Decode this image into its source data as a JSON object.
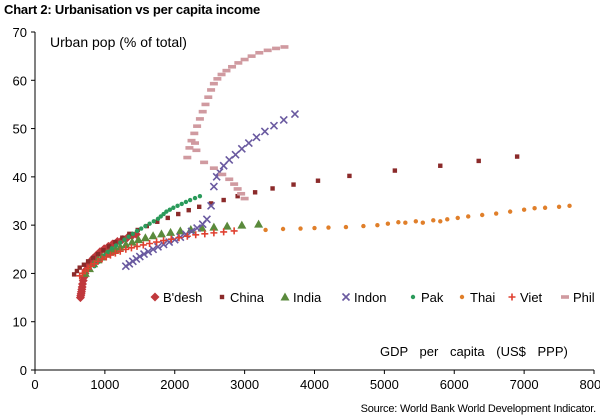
{
  "header": {
    "title": "Chart 2: Urbanisation vs per capita income"
  },
  "footer": {
    "source": "Source: World Bank World Development Indicator."
  },
  "chart_data": {
    "type": "scatter",
    "title": "Chart 2: Urbanisation vs per capita income",
    "ylabel": "Urban pop (% of total)",
    "xlabel": "GDP per capita (US$ PPP)",
    "xlim": [
      0,
      8000
    ],
    "ylim": [
      0,
      70
    ],
    "x_ticks": [
      0,
      1000,
      2000,
      3000,
      4000,
      5000,
      6000,
      7000,
      8000
    ],
    "y_ticks": [
      0,
      10,
      20,
      30,
      40,
      50,
      60,
      70
    ],
    "grid": false,
    "legend_position": "bottom",
    "series": [
      {
        "name": "B'desh",
        "color": "#c0383c",
        "marker": "diamond",
        "points": [
          [
            650,
            15
          ],
          [
            655,
            15.4
          ],
          [
            660,
            15.8
          ],
          [
            665,
            16.2
          ],
          [
            670,
            16.7
          ],
          [
            675,
            17.2
          ],
          [
            680,
            17.8
          ],
          [
            690,
            18.5
          ],
          [
            700,
            19.2
          ],
          [
            715,
            20
          ],
          [
            735,
            20.8
          ],
          [
            760,
            21.6
          ],
          [
            790,
            22.4
          ],
          [
            830,
            23.1
          ],
          [
            880,
            23.8
          ],
          [
            930,
            24.5
          ],
          [
            990,
            25.1
          ],
          [
            1050,
            25.6
          ],
          [
            1110,
            26.1
          ],
          [
            1180,
            26.6
          ],
          [
            1250,
            27
          ],
          [
            1320,
            27.4
          ],
          [
            1390,
            27.8
          ],
          [
            1450,
            28.1
          ]
        ]
      },
      {
        "name": "China",
        "color": "#8b2a2a",
        "marker": "square",
        "points": [
          [
            560,
            19.8
          ],
          [
            600,
            20.5
          ],
          [
            640,
            21.2
          ],
          [
            700,
            21.8
          ],
          [
            760,
            22.5
          ],
          [
            830,
            23.2
          ],
          [
            900,
            24
          ],
          [
            980,
            24.8
          ],
          [
            1060,
            25.6
          ],
          [
            1150,
            26.5
          ],
          [
            1250,
            27.4
          ],
          [
            1350,
            28.2
          ],
          [
            1470,
            29
          ],
          [
            1600,
            29.8
          ],
          [
            1750,
            30.7
          ],
          [
            1900,
            31.5
          ],
          [
            2050,
            32.3
          ],
          [
            2200,
            33.1
          ],
          [
            2350,
            33.8
          ],
          [
            2520,
            34.5
          ],
          [
            2700,
            35.2
          ],
          [
            2900,
            36
          ],
          [
            3150,
            36.8
          ],
          [
            3400,
            37.6
          ],
          [
            3700,
            38.4
          ],
          [
            4050,
            39.2
          ],
          [
            4500,
            40.2
          ],
          [
            5150,
            41.3
          ],
          [
            5800,
            42.3
          ],
          [
            6350,
            43.3
          ],
          [
            6900,
            44.2
          ]
        ]
      },
      {
        "name": "India",
        "color": "#5a8a3c",
        "marker": "triangle",
        "points": [
          [
            720,
            20
          ],
          [
            780,
            21
          ],
          [
            840,
            22
          ],
          [
            900,
            22.8
          ],
          [
            960,
            23.4
          ],
          [
            1020,
            24
          ],
          [
            1080,
            24.5
          ],
          [
            1150,
            25
          ],
          [
            1220,
            25.5
          ],
          [
            1300,
            26
          ],
          [
            1390,
            26.5
          ],
          [
            1480,
            27
          ],
          [
            1580,
            27.4
          ],
          [
            1690,
            27.8
          ],
          [
            1810,
            28.2
          ],
          [
            1940,
            28.5
          ],
          [
            2080,
            28.8
          ],
          [
            2230,
            29.1
          ],
          [
            2390,
            29.4
          ],
          [
            2560,
            29.6
          ],
          [
            2750,
            29.8
          ],
          [
            2960,
            30
          ],
          [
            3200,
            30.2
          ]
        ]
      },
      {
        "name": "Indon",
        "color": "#6a5aa0",
        "marker": "cross",
        "points": [
          [
            1300,
            21.5
          ],
          [
            1350,
            22
          ],
          [
            1400,
            22.5
          ],
          [
            1450,
            23
          ],
          [
            1500,
            23.5
          ],
          [
            1560,
            24
          ],
          [
            1620,
            24.5
          ],
          [
            1690,
            25
          ],
          [
            1760,
            25.5
          ],
          [
            1840,
            26
          ],
          [
            1920,
            26.5
          ],
          [
            2000,
            27
          ],
          [
            2080,
            27.5
          ],
          [
            2160,
            28.1
          ],
          [
            2240,
            28.7
          ],
          [
            2320,
            29.4
          ],
          [
            2400,
            30.2
          ],
          [
            2460,
            31.2
          ],
          [
            2520,
            34
          ],
          [
            2560,
            38
          ],
          [
            2600,
            40
          ],
          [
            2640,
            41
          ],
          [
            2700,
            42.3
          ],
          [
            2780,
            43.5
          ],
          [
            2870,
            44.6
          ],
          [
            2960,
            45.8
          ],
          [
            3060,
            47
          ],
          [
            3170,
            48.2
          ],
          [
            3290,
            49.4
          ],
          [
            3420,
            50.6
          ],
          [
            3560,
            51.8
          ],
          [
            3720,
            53
          ]
        ]
      },
      {
        "name": "Pak",
        "color": "#2a9a5a",
        "marker": "dot",
        "points": [
          [
            850,
            21.5
          ],
          [
            900,
            22.3
          ],
          [
            950,
            23
          ],
          [
            1000,
            23.8
          ],
          [
            1050,
            24.5
          ],
          [
            1100,
            25.2
          ],
          [
            1160,
            25.8
          ],
          [
            1220,
            26.4
          ],
          [
            1280,
            27
          ],
          [
            1340,
            27.6
          ],
          [
            1400,
            28.2
          ],
          [
            1460,
            28.8
          ],
          [
            1520,
            29.3
          ],
          [
            1580,
            29.8
          ],
          [
            1640,
            30.3
          ],
          [
            1700,
            30.8
          ],
          [
            1760,
            31.3
          ],
          [
            1800,
            31.8
          ],
          [
            1840,
            32.3
          ],
          [
            1880,
            32.8
          ],
          [
            1930,
            33.2
          ],
          [
            1980,
            33.6
          ],
          [
            2040,
            34
          ],
          [
            2100,
            34.4
          ],
          [
            2160,
            34.8
          ],
          [
            2220,
            35.2
          ],
          [
            2290,
            35.6
          ],
          [
            2360,
            36
          ]
        ]
      },
      {
        "name": "Thai",
        "color": "#e07f2a",
        "marker": "dot",
        "points": [
          [
            3300,
            29
          ],
          [
            3550,
            29.2
          ],
          [
            3800,
            29.3
          ],
          [
            4000,
            29.4
          ],
          [
            4200,
            29.5
          ],
          [
            4450,
            29.6
          ],
          [
            4700,
            29.8
          ],
          [
            4900,
            30
          ],
          [
            5050,
            30.3
          ],
          [
            5200,
            30.6
          ],
          [
            5300,
            30.5
          ],
          [
            5450,
            30.8
          ],
          [
            5550,
            30.5
          ],
          [
            5700,
            31
          ],
          [
            5800,
            30.8
          ],
          [
            5900,
            31.2
          ],
          [
            6050,
            31.5
          ],
          [
            6200,
            31.8
          ],
          [
            6400,
            32.1
          ],
          [
            6600,
            32.4
          ],
          [
            6800,
            32.8
          ],
          [
            7000,
            33.2
          ],
          [
            7150,
            33.5
          ],
          [
            7300,
            33.6
          ],
          [
            7500,
            33.8
          ],
          [
            7650,
            34
          ]
        ]
      },
      {
        "name": "Viet",
        "color": "#e04030",
        "marker": "plus",
        "points": [
          [
            640,
            19.5
          ],
          [
            680,
            20
          ],
          [
            720,
            20.5
          ],
          [
            760,
            21
          ],
          [
            800,
            21.5
          ],
          [
            850,
            22
          ],
          [
            900,
            22.5
          ],
          [
            960,
            23
          ],
          [
            1020,
            23.4
          ],
          [
            1080,
            23.8
          ],
          [
            1150,
            24.2
          ],
          [
            1220,
            24.6
          ],
          [
            1300,
            25
          ],
          [
            1380,
            25.3
          ],
          [
            1460,
            25.6
          ],
          [
            1550,
            25.9
          ],
          [
            1640,
            26.2
          ],
          [
            1740,
            26.5
          ],
          [
            1840,
            26.8
          ],
          [
            1950,
            27.1
          ],
          [
            2060,
            27.4
          ],
          [
            2180,
            27.7
          ],
          [
            2300,
            28
          ],
          [
            2430,
            28.2
          ],
          [
            2560,
            28.4
          ],
          [
            2700,
            28.6
          ],
          [
            2850,
            28.8
          ]
        ]
      },
      {
        "name": "Phil",
        "color": "#d09aa0",
        "marker": "dash",
        "points": [
          [
            2180,
            44
          ],
          [
            2210,
            46
          ],
          [
            2240,
            47.5
          ],
          [
            2280,
            49
          ],
          [
            2320,
            50.5
          ],
          [
            2360,
            52
          ],
          [
            2400,
            53.5
          ],
          [
            2440,
            55
          ],
          [
            2480,
            56.5
          ],
          [
            2520,
            58
          ],
          [
            2560,
            59.3
          ],
          [
            2610,
            60.3
          ],
          [
            2670,
            61.2
          ],
          [
            2740,
            62
          ],
          [
            2820,
            62.8
          ],
          [
            2910,
            63.6
          ],
          [
            3000,
            64.3
          ],
          [
            3100,
            65
          ],
          [
            3210,
            65.7
          ],
          [
            3330,
            66.2
          ],
          [
            3450,
            66.6
          ],
          [
            3570,
            66.9
          ],
          [
            2290,
            47
          ],
          [
            2310,
            45.5
          ],
          [
            2420,
            43
          ],
          [
            2560,
            41.8
          ],
          [
            2680,
            40.5
          ],
          [
            2780,
            39.5
          ],
          [
            2850,
            38.5
          ],
          [
            2900,
            37.5
          ],
          [
            2950,
            36.5
          ],
          [
            3000,
            35.5
          ]
        ]
      }
    ]
  }
}
